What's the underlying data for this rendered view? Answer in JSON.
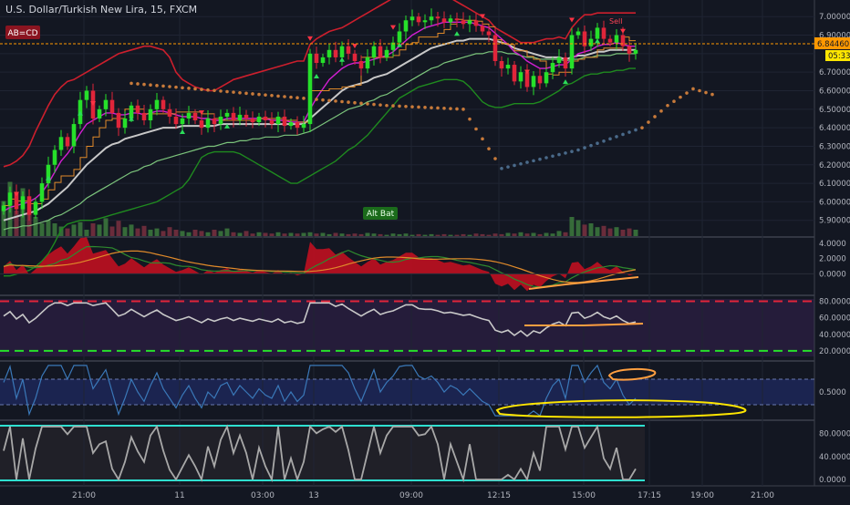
{
  "header": {
    "symbol_title": "U.S. Dollar/Turkish New Lira, 15, FXCM"
  },
  "badges": {
    "pattern_label": "AB=CD",
    "alt_bat_label": "Alt Bat",
    "sell_label": "Sell"
  },
  "price_axis": {
    "current_price": "6.84460",
    "countdown": "05:33"
  },
  "colors": {
    "background": "#131722",
    "up_candle": "#26e02a",
    "down_candle": "#e0253a",
    "price_line": "#ff9800",
    "band_red": "#cc1f2d",
    "band_green": "#1f8a1f",
    "ma_magenta": "#d21fd2",
    "ma_gray": "#c8c8c8",
    "ma_orange": "#e08a2a",
    "ma_green": "#7cc47c",
    "osc_line": "#3a78b8",
    "stoch_line": "#a8a8a8",
    "annotation_yellow": "#ffe600",
    "annotation_orange": "#ff9f40"
  },
  "chart_data": [
    {
      "type": "candlestick",
      "panel": "price",
      "title": "U.S. Dollar/Turkish New Lira, 15, FXCM",
      "y_ticks": [
        5.9,
        6.0,
        6.1,
        6.2,
        6.3,
        6.4,
        6.5,
        6.6,
        6.7,
        6.8,
        6.9,
        7.0
      ],
      "y_tick_labels": [
        "5.90000",
        "6.00000",
        "6.10000",
        "6.20000",
        "6.30000",
        "6.40000",
        "6.50000",
        "6.60000",
        "6.70000",
        "6.80000",
        "6.90000",
        "7.00000"
      ],
      "ylim": [
        5.82,
        7.07
      ],
      "x_tick_labels": [
        "21:00",
        "11",
        "03:00",
        "13",
        "09:00",
        "12:15",
        "15:00",
        "17:15",
        "19:00",
        "21:00"
      ],
      "closes": [
        5.98,
        6.05,
        5.96,
        6.03,
        5.93,
        6.0,
        6.1,
        6.2,
        6.28,
        6.35,
        6.3,
        6.42,
        6.55,
        6.6,
        6.45,
        6.5,
        6.55,
        6.48,
        6.4,
        6.45,
        6.52,
        6.48,
        6.44,
        6.5,
        6.55,
        6.5,
        6.46,
        6.42,
        6.45,
        6.48,
        6.44,
        6.4,
        6.45,
        6.42,
        6.46,
        6.48,
        6.44,
        6.47,
        6.45,
        6.43,
        6.46,
        6.44,
        6.42,
        6.46,
        6.41,
        6.43,
        6.4,
        6.42,
        6.8,
        6.75,
        6.78,
        6.82,
        6.78,
        6.84,
        6.8,
        6.76,
        6.72,
        6.78,
        6.84,
        6.78,
        6.82,
        6.86,
        6.92,
        6.98,
        7.0,
        6.97,
        6.98,
        7.0,
        6.99,
        6.97,
        6.99,
        6.98,
        6.96,
        6.98,
        6.95,
        6.92,
        6.9,
        6.76,
        6.72,
        6.74,
        6.65,
        6.7,
        6.62,
        6.68,
        6.64,
        6.7,
        6.75,
        6.78,
        6.72,
        6.9,
        6.92,
        6.84,
        6.88,
        6.94,
        6.88,
        6.86,
        6.9,
        6.84,
        6.8,
        6.82
      ],
      "ma_magenta": [
        5.95,
        5.97,
        5.98,
        5.99,
        6.0,
        6.02,
        6.05,
        6.1,
        6.16,
        6.22,
        6.26,
        6.31,
        6.37,
        6.42,
        6.44,
        6.46,
        6.48,
        6.48,
        6.47,
        6.47,
        6.48,
        6.48,
        6.47,
        6.48,
        6.49,
        6.49,
        6.48,
        6.47,
        6.46,
        6.46,
        6.46,
        6.45,
        6.45,
        6.44,
        6.44,
        6.45,
        6.45,
        6.45,
        6.45,
        6.45,
        6.45,
        6.45,
        6.44,
        6.44,
        6.44,
        6.43,
        6.43,
        6.43,
        6.5,
        6.56,
        6.61,
        6.66,
        6.69,
        6.72,
        6.74,
        6.75,
        6.75,
        6.76,
        6.77,
        6.78,
        6.79,
        6.81,
        6.84,
        6.87,
        6.9,
        6.92,
        6.94,
        6.95,
        6.96,
        6.97,
        6.97,
        6.97,
        6.97,
        6.97,
        6.96,
        6.95,
        6.94,
        6.91,
        6.88,
        6.85,
        6.81,
        6.79,
        6.76,
        6.74,
        6.72,
        6.72,
        6.73,
        6.74,
        6.74,
        6.77,
        6.8,
        6.81,
        6.82,
        6.84,
        6.85,
        6.85,
        6.86,
        6.85,
        6.84,
        6.84
      ],
      "ma_gray": [
        5.9,
        5.91,
        5.92,
        5.93,
        5.94,
        5.95,
        5.97,
        5.99,
        6.02,
        6.05,
        6.08,
        6.12,
        6.16,
        6.2,
        6.23,
        6.26,
        6.29,
        6.31,
        6.32,
        6.34,
        6.35,
        6.36,
        6.37,
        6.38,
        6.39,
        6.4,
        6.4,
        6.4,
        6.41,
        6.41,
        6.41,
        6.41,
        6.41,
        6.41,
        6.42,
        6.42,
        6.42,
        6.42,
        6.42,
        6.42,
        6.42,
        6.42,
        6.42,
        6.42,
        6.42,
        6.42,
        6.42,
        6.42,
        6.45,
        6.48,
        6.51,
        6.54,
        6.57,
        6.6,
        6.62,
        6.63,
        6.64,
        6.65,
        6.67,
        6.68,
        6.69,
        6.71,
        6.73,
        6.75,
        6.77,
        6.79,
        6.81,
        6.83,
        6.84,
        6.85,
        6.86,
        6.87,
        6.87,
        6.88,
        6.88,
        6.88,
        6.88,
        6.87,
        6.86,
        6.85,
        6.83,
        6.82,
        6.81,
        6.8,
        6.79,
        6.78,
        6.78,
        6.78,
        6.77,
        6.78,
        6.79,
        6.79,
        6.8,
        6.81,
        6.81,
        6.82,
        6.82,
        6.82,
        6.82,
        6.82
      ],
      "ma_green": [
        5.85,
        5.86,
        5.86,
        5.87,
        5.87,
        5.88,
        5.89,
        5.9,
        5.92,
        5.93,
        5.95,
        5.97,
        5.99,
        6.02,
        6.04,
        6.06,
        6.08,
        6.1,
        6.12,
        6.14,
        6.16,
        6.17,
        6.19,
        6.2,
        6.22,
        6.23,
        6.24,
        6.25,
        6.26,
        6.27,
        6.28,
        6.29,
        6.3,
        6.3,
        6.31,
        6.32,
        6.32,
        6.33,
        6.33,
        6.34,
        6.34,
        6.35,
        6.35,
        6.35,
        6.36,
        6.36,
        6.36,
        6.37,
        6.38,
        6.4,
        6.42,
        6.44,
        6.46,
        6.48,
        6.5,
        6.51,
        6.52,
        6.54,
        6.55,
        6.57,
        6.58,
        6.6,
        6.62,
        6.64,
        6.66,
        6.68,
        6.7,
        6.72,
        6.73,
        6.75,
        6.76,
        6.77,
        6.78,
        6.79,
        6.8,
        6.8,
        6.81,
        6.81,
        6.81,
        6.8,
        6.8,
        6.79,
        6.78,
        6.78,
        6.77,
        6.77,
        6.77,
        6.77,
        6.76,
        6.77,
        6.77,
        6.78,
        6.78,
        6.79,
        6.79,
        6.79,
        6.8,
        6.8,
        6.8,
        6.8
      ],
      "band_upper_red": [
        6.19,
        6.2,
        6.22,
        6.25,
        6.3,
        6.38,
        6.45,
        6.52,
        6.58,
        6.62,
        6.65,
        6.66,
        6.68,
        6.7,
        6.72,
        6.74,
        6.76,
        6.78,
        6.8,
        6.81,
        6.82,
        6.83,
        6.84,
        6.84,
        6.83,
        6.82,
        6.78,
        6.7,
        6.66,
        6.64,
        6.62,
        6.61,
        6.6,
        6.6,
        6.62,
        6.64,
        6.66,
        6.67,
        6.68,
        6.69,
        6.7,
        6.71,
        6.72,
        6.73,
        6.74,
        6.75,
        6.76,
        6.76,
        6.85,
        6.88,
        6.9,
        6.92,
        6.93,
        6.94,
        6.96,
        6.98,
        7.0,
        7.02,
        7.04,
        7.06,
        7.08,
        7.1,
        7.12,
        7.13,
        7.14,
        7.15,
        7.15,
        7.14,
        7.13,
        7.12,
        7.1,
        7.08,
        7.06,
        7.04,
        7.02,
        7.0,
        6.98,
        6.94,
        6.92,
        6.9,
        6.88,
        6.86,
        6.86,
        6.86,
        6.87,
        6.88,
        6.88,
        6.89,
        6.88,
        6.94,
        6.98,
        7.01,
        7.01,
        7.02,
        7.02,
        7.02,
        7.02,
        7.02,
        7.02,
        7.02
      ],
      "band_lower_green": [
        5.6,
        5.6,
        5.61,
        5.62,
        5.63,
        5.65,
        5.68,
        5.72,
        5.78,
        5.85,
        5.88,
        5.89,
        5.9,
        5.9,
        5.9,
        5.91,
        5.92,
        5.93,
        5.94,
        5.95,
        5.96,
        5.97,
        5.98,
        5.99,
        6.0,
        6.02,
        6.04,
        6.06,
        6.08,
        6.12,
        6.18,
        6.24,
        6.26,
        6.27,
        6.27,
        6.27,
        6.27,
        6.26,
        6.24,
        6.22,
        6.2,
        6.18,
        6.16,
        6.14,
        6.12,
        6.1,
        6.1,
        6.12,
        6.14,
        6.16,
        6.18,
        6.2,
        6.22,
        6.25,
        6.28,
        6.3,
        6.33,
        6.36,
        6.4,
        6.44,
        6.48,
        6.52,
        6.56,
        6.58,
        6.6,
        6.62,
        6.63,
        6.64,
        6.65,
        6.66,
        6.66,
        6.66,
        6.65,
        6.62,
        6.58,
        6.54,
        6.52,
        6.51,
        6.51,
        6.52,
        6.53,
        6.53,
        6.53,
        6.53,
        6.54,
        6.56,
        6.58,
        6.6,
        6.63,
        6.64,
        6.66,
        6.68,
        6.69,
        6.69,
        6.7,
        6.7,
        6.71,
        6.71,
        6.72,
        6.72
      ],
      "psar_dots": [
        [
          20,
          6.64
        ],
        [
          40,
          6.58
        ],
        [
          60,
          6.52
        ],
        [
          72,
          6.5
        ],
        [
          78,
          6.18
        ],
        [
          90,
          6.28
        ],
        [
          100,
          6.4
        ],
        [
          104,
          6.52
        ],
        [
          108,
          6.61
        ],
        [
          112,
          6.57
        ]
      ],
      "volume": [
        0.55,
        0.85,
        0.4,
        0.75,
        0.35,
        0.3,
        0.2,
        0.25,
        0.2,
        0.15,
        0.12,
        0.18,
        0.22,
        0.1,
        0.2,
        0.18,
        0.28,
        0.15,
        0.24,
        0.14,
        0.18,
        0.12,
        0.16,
        0.1,
        0.12,
        0.08,
        0.14,
        0.1,
        0.08,
        0.06,
        0.1,
        0.08,
        0.06,
        0.1,
        0.08,
        0.12,
        0.06,
        0.05,
        0.08,
        0.04,
        0.06,
        0.05,
        0.04,
        0.06,
        0.04,
        0.05,
        0.04,
        0.05,
        0.06,
        0.04,
        0.05,
        0.03,
        0.05,
        0.04,
        0.03,
        0.04,
        0.03,
        0.05,
        0.04,
        0.03,
        0.02,
        0.04,
        0.03,
        0.04,
        0.02,
        0.03,
        0.02,
        0.03,
        0.02,
        0.03,
        0.02,
        0.02,
        0.03,
        0.02,
        0.04,
        0.03,
        0.02,
        0.04,
        0.03,
        0.05,
        0.04,
        0.06,
        0.04,
        0.05,
        0.03,
        0.05,
        0.04,
        0.08,
        0.06,
        0.3,
        0.25,
        0.18,
        0.2,
        0.14,
        0.16,
        0.12,
        0.14,
        0.1,
        0.12,
        0.1
      ]
    },
    {
      "type": "area",
      "panel": "macd",
      "y_tick_labels": [
        "4.0000",
        "2.0000",
        "0.0000"
      ],
      "ylim": [
        -2.6,
        4.6
      ]
    },
    {
      "type": "line",
      "panel": "rsi",
      "y_tick_labels": [
        "80.0000",
        "60.0000",
        "40.0000",
        "20.0000"
      ],
      "ylim": [
        10,
        85
      ],
      "levels": [
        80,
        20
      ]
    },
    {
      "type": "line",
      "panel": "oscillator",
      "y_tick_labels": [
        "0.5000"
      ],
      "ylim": [
        0,
        1.05
      ]
    },
    {
      "type": "line",
      "panel": "stochastic",
      "y_tick_labels": [
        "80.0000",
        "40.0000",
        "0.0000"
      ],
      "ylim": [
        -8,
        100
      ],
      "levels": [
        92,
        5
      ]
    }
  ]
}
